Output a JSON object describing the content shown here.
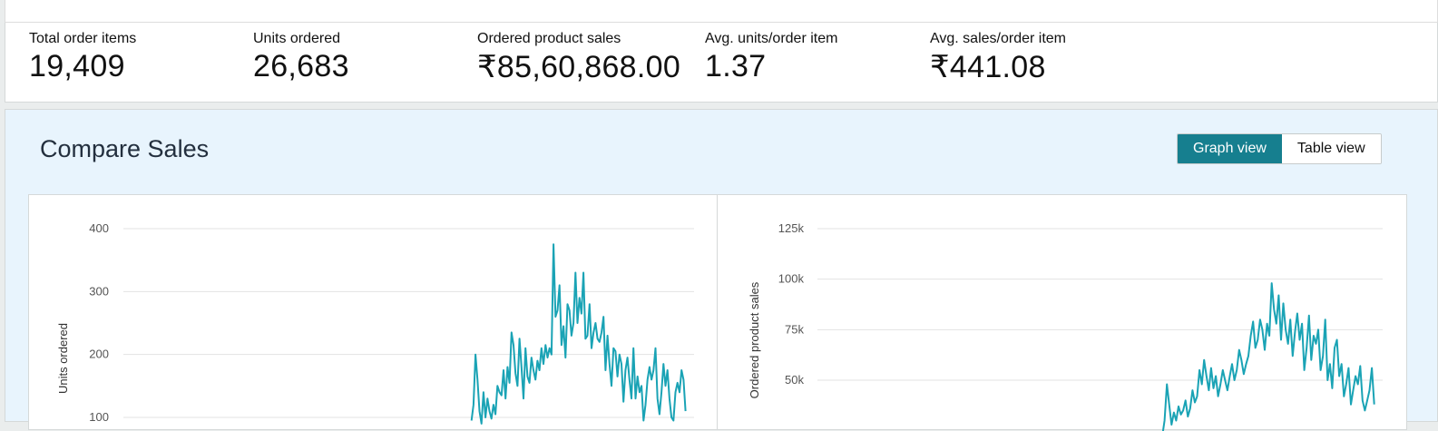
{
  "metrics": [
    {
      "label": "Total order items",
      "value": "19,409"
    },
    {
      "label": "Units ordered",
      "value": "26,683"
    },
    {
      "label": "Ordered product sales",
      "value": "₹85,60,868.00"
    },
    {
      "label": "Avg. units/order item",
      "value": "1.37"
    },
    {
      "label": "Avg. sales/order item",
      "value": "₹441.08"
    }
  ],
  "compare": {
    "title": "Compare Sales",
    "views": [
      {
        "label": "Graph view",
        "active": true
      },
      {
        "label": "Table view",
        "active": false
      }
    ]
  },
  "colors": {
    "accent": "#167f8f",
    "series": "#1aa3b5"
  },
  "chart_data": [
    {
      "type": "line",
      "ylabel": "Units ordered",
      "xlabel": "",
      "ylim": [
        100,
        400
      ],
      "ticks": [
        {
          "v": 400,
          "label": "400"
        },
        {
          "v": 300,
          "label": "300"
        },
        {
          "v": 200,
          "label": "200"
        },
        {
          "v": 100,
          "label": "100"
        }
      ],
      "grid": true,
      "series": [
        {
          "values": [
            95,
            120,
            200,
            160,
            110,
            90,
            140,
            100,
            130,
            110,
            98,
            120,
            105,
            150,
            140,
            135,
            175,
            130,
            180,
            155,
            235,
            215,
            170,
            150,
            225,
            180,
            130,
            210,
            165,
            155,
            195,
            175,
            160,
            190,
            175,
            210,
            185,
            215,
            195,
            210,
            200,
            375,
            260,
            270,
            310,
            215,
            245,
            195,
            280,
            270,
            230,
            250,
            330,
            250,
            290,
            265,
            330,
            225,
            230,
            280,
            210,
            235,
            250,
            225,
            220,
            235,
            260,
            175,
            230,
            185,
            150,
            210,
            205,
            165,
            200,
            185,
            125,
            175,
            195,
            160,
            130,
            210,
            130,
            165,
            140,
            150,
            95,
            120,
            160,
            180,
            160,
            175,
            210,
            130,
            105,
            140,
            185,
            150,
            175,
            130,
            100,
            95,
            140,
            155,
            140,
            175,
            160,
            110
          ]
        }
      ]
    },
    {
      "type": "line",
      "ylabel": "Ordered product sales",
      "xlabel": "",
      "ylim": [
        25000,
        125000
      ],
      "ticks": [
        {
          "v": 125000,
          "label": "125k"
        },
        {
          "v": 100000,
          "label": "100k"
        },
        {
          "v": 75000,
          "label": "75k"
        },
        {
          "v": 50000,
          "label": "50k"
        }
      ],
      "grid": true,
      "series": [
        {
          "values": [
            22000,
            30000,
            48000,
            38000,
            28000,
            34000,
            30000,
            37000,
            33000,
            35000,
            40000,
            32000,
            36000,
            45000,
            39000,
            42000,
            55000,
            48000,
            60000,
            52000,
            45000,
            56000,
            46000,
            52000,
            42000,
            48000,
            55000,
            50000,
            45000,
            52000,
            58000,
            50000,
            55000,
            65000,
            60000,
            53000,
            58000,
            62000,
            72000,
            79000,
            66000,
            70000,
            80000,
            75000,
            65000,
            78000,
            72000,
            98000,
            85000,
            78000,
            92000,
            70000,
            88000,
            75000,
            68000,
            80000,
            62000,
            74000,
            83000,
            70000,
            78000,
            55000,
            66000,
            82000,
            60000,
            72000,
            68000,
            75000,
            55000,
            62000,
            80000,
            50000,
            58000,
            46000,
            66000,
            70000,
            52000,
            58000,
            42000,
            48000,
            56000,
            38000,
            45000,
            52000,
            48000,
            57000,
            40000,
            35000,
            40000,
            45000,
            56000,
            38000
          ]
        }
      ]
    }
  ]
}
